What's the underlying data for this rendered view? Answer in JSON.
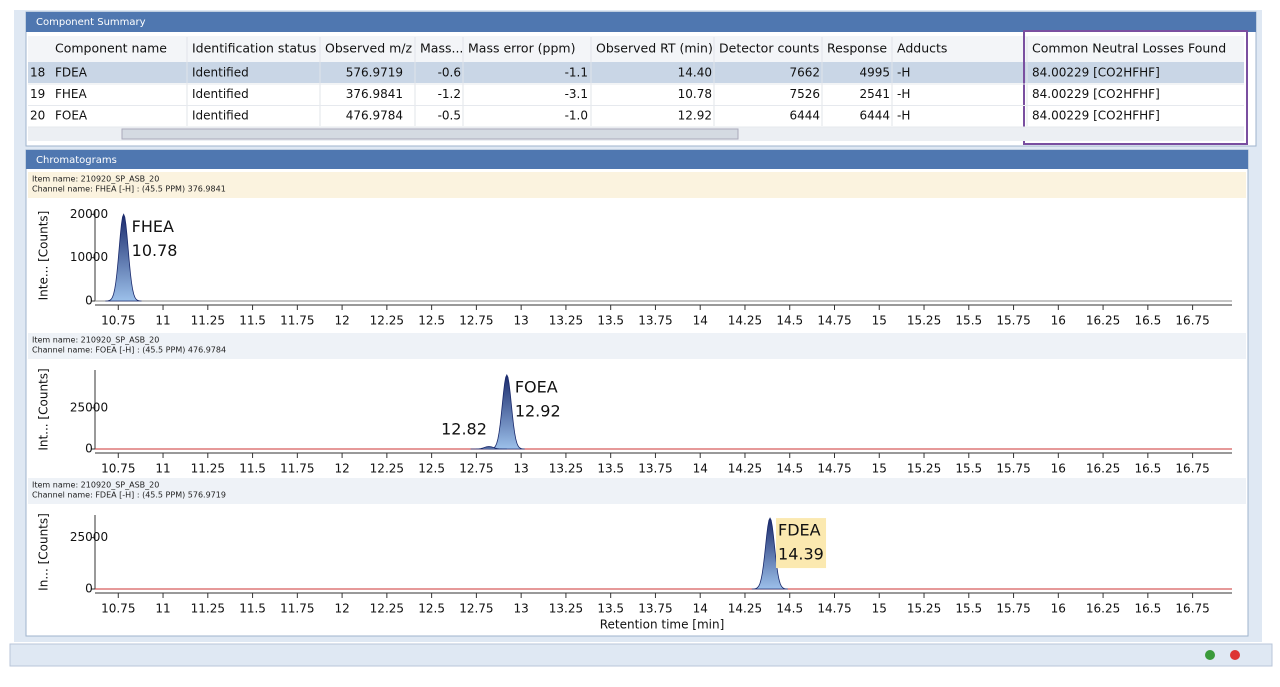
{
  "component_summary": {
    "title": "Component Summary",
    "columns": [
      "Component name",
      "Identification status",
      "Observed m/z",
      "Mass...",
      "Mass error (ppm)",
      "Observed RT (min)",
      "Detector counts",
      "Response",
      "Adducts",
      "Common Neutral Losses Found"
    ],
    "rows": [
      [
        "18",
        "FDEA",
        "Identified",
        "576.9719",
        "-0.6",
        "-1.1",
        "14.40",
        "7662",
        "4995",
        "-H",
        "84.00229 [CO2HFHF]"
      ],
      [
        "19",
        "FHEA",
        "Identified",
        "376.9841",
        "-1.2",
        "-3.1",
        "10.78",
        "7526",
        "2541",
        "-H",
        "84.00229 [CO2HFHF]"
      ],
      [
        "20",
        "FOEA",
        "Identified",
        "476.9784",
        "-0.5",
        "-1.0",
        "12.92",
        "6444",
        "6444",
        "-H",
        "84.00229 [CO2HFHF]"
      ]
    ]
  },
  "chromatograms": {
    "title": "Chromatograms",
    "x_label": "Retention time [min]",
    "xlim": [
      10.62,
      16.97
    ],
    "xticks": [
      10.75,
      11,
      11.25,
      11.5,
      11.75,
      12,
      12.25,
      12.5,
      12.75,
      13,
      13.25,
      13.5,
      13.75,
      14,
      14.25,
      14.5,
      14.75,
      15,
      15.25,
      15.5,
      15.75,
      16,
      16.25,
      16.5,
      16.75
    ],
    "panels": [
      {
        "item_name": "Item name: 210920_SP_ASB_20",
        "channel_name": "Channel name: FHEA [-H] : (45.5 PPM) 376.9841",
        "y_label": "Inte... [Counts]",
        "ylim": [
          0,
          21000
        ],
        "yticks": [
          0,
          10000,
          20000
        ],
        "peaks": [
          {
            "name": "FHEA",
            "rt": 10.78,
            "height": 20000
          }
        ]
      },
      {
        "item_name": "Item name: 210920_SP_ASB_20",
        "channel_name": "Channel name: FOEA [-H] : (45.5 PPM) 476.9784",
        "y_label": "Int... [Counts]",
        "ylim": [
          0,
          48000
        ],
        "yticks": [
          0,
          25000
        ],
        "peaks": [
          {
            "name": "FOEA",
            "rt": 12.92,
            "height": 45000
          },
          {
            "rt": 12.82,
            "height": 1500
          }
        ]
      },
      {
        "item_name": "Item name: 210920_SP_ASB_20",
        "channel_name": "Channel name: FDEA [-H] : (45.5 PPM) 576.9719",
        "y_label": "In... [Counts]",
        "ylim": [
          0,
          36000
        ],
        "yticks": [
          0,
          25000
        ],
        "peaks": [
          {
            "name": "FDEA",
            "rt": 14.39,
            "height": 34500
          }
        ]
      }
    ]
  }
}
